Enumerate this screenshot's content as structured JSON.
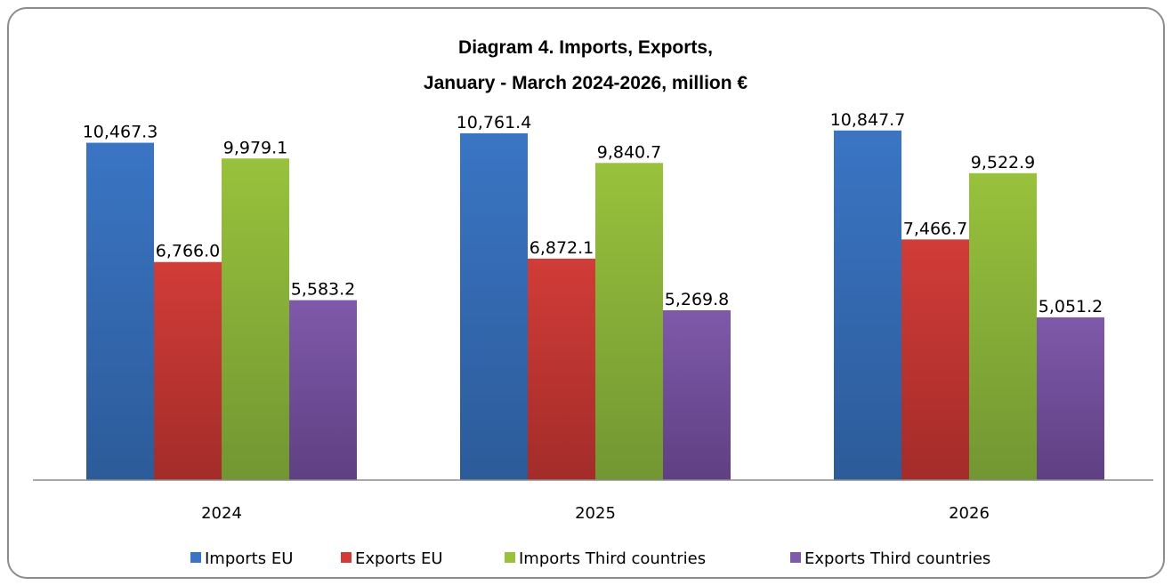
{
  "chart_data": {
    "type": "bar",
    "title": [
      "Diagram 4. Imports, Exports,",
      "January - March 2024-2026,  million €"
    ],
    "categories": [
      "2024",
      "2025",
      "2026"
    ],
    "series": [
      {
        "name": "Imports EU",
        "values": [
          10467.3,
          10761.4,
          10847.7
        ],
        "labels": [
          "10,467.3",
          "10,761.4",
          "10,847.7"
        ],
        "color": "#3a75c4",
        "color_dark": "#2c5b99"
      },
      {
        "name": "Exports EU",
        "values": [
          6766.0,
          6872.1,
          7466.7
        ],
        "labels": [
          "6,766.0",
          "6,872.1",
          "7,466.7"
        ],
        "color": "#d13c38",
        "color_dark": "#a32c29"
      },
      {
        "name": "Imports Third countries",
        "values": [
          9979.1,
          9840.7,
          9522.9
        ],
        "labels": [
          "9,979.1",
          "9,840.7",
          "9,522.9"
        ],
        "color": "#98c23c",
        "color_dark": "#729632"
      },
      {
        "name": "Exports Third countries",
        "values": [
          5583.2,
          5269.8,
          5051.2
        ],
        "labels": [
          "5,583.2",
          "5,269.8",
          "5,051.2"
        ],
        "color": "#7f59aa",
        "color_dark": "#5f4082"
      }
    ],
    "ylim": [
      0,
      12000
    ],
    "grid": false,
    "legend_position": "bottom"
  }
}
